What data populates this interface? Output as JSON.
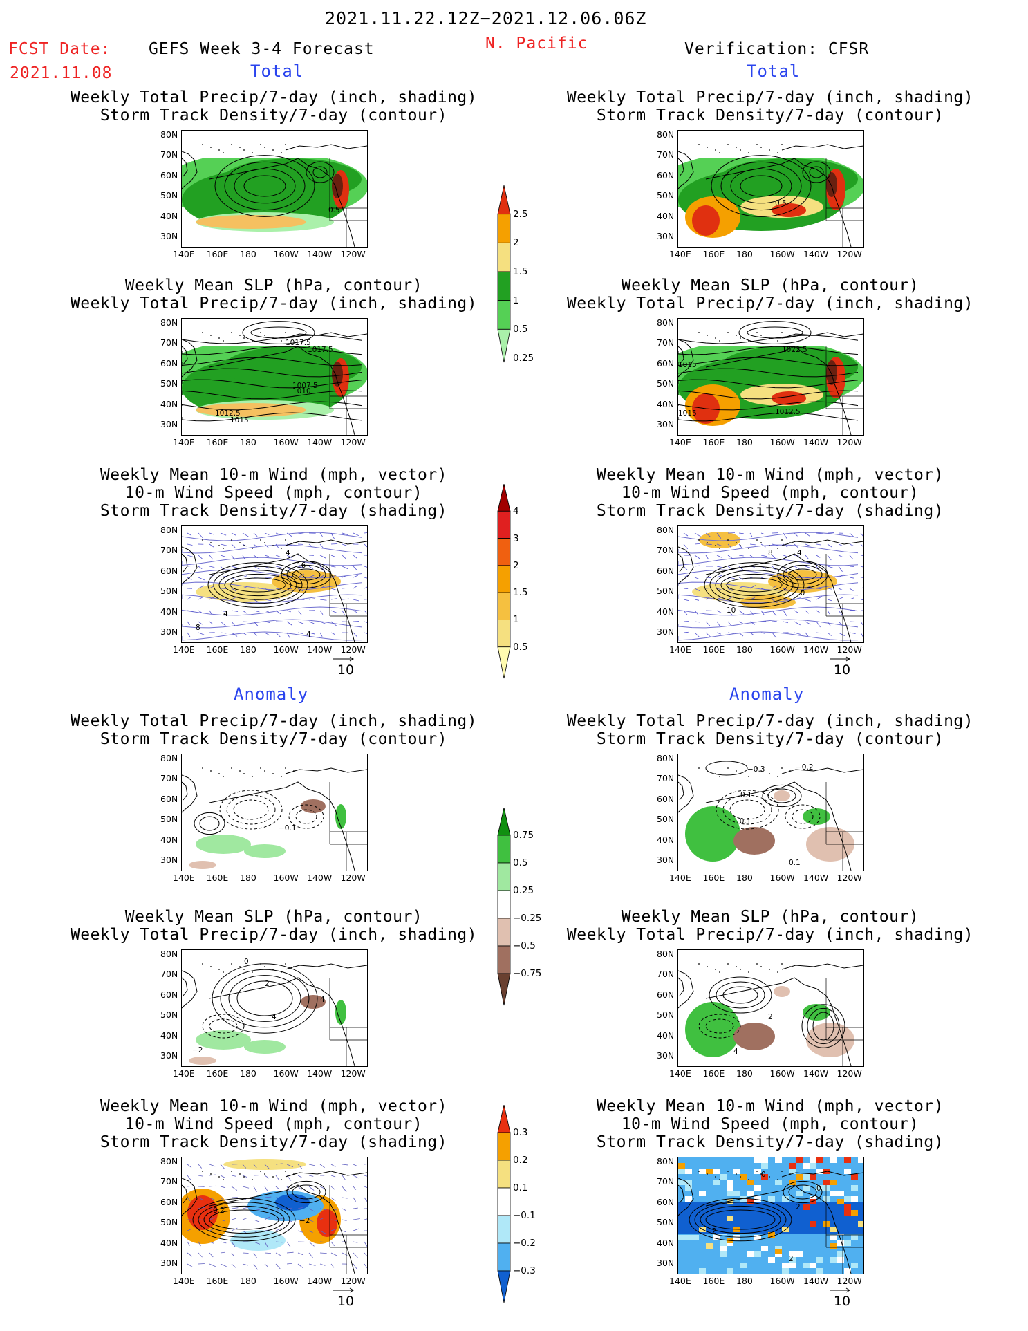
{
  "header": {
    "date_range": "2021.11.22.12Z−2021.12.06.06Z",
    "fcst_label": "FCST Date:",
    "fcst_date": "2021.11.08",
    "forecast_title": "GEFS Week 3-4 Forecast",
    "region": "N. Pacific",
    "verification": "Verification: CFSR"
  },
  "sections": {
    "total": "Total",
    "anomaly": "Anomaly"
  },
  "panel_titles": {
    "precip_storm": [
      "Weekly Total Precip/7-day (inch, shading)",
      "Storm Track Density/7-day (contour)"
    ],
    "slp_precip": [
      "Weekly Mean SLP (hPa, contour)",
      "Weekly Total Precip/7-day (inch, shading)"
    ],
    "wind_storm": [
      "Weekly Mean 10-m Wind (mph, vector)",
      "10-m Wind Speed (mph, contour)",
      "Storm Track Density/7-day (shading)"
    ]
  },
  "axes": {
    "lat_ticks": [
      "80N",
      "70N",
      "60N",
      "50N",
      "40N",
      "30N"
    ],
    "lon_ticks": [
      "140E",
      "160E",
      "180",
      "160W",
      "140W",
      "120W"
    ]
  },
  "vector_ref": "10",
  "colorbars": {
    "precip_total": {
      "labels": [
        "2.5",
        "2",
        "1.5",
        "1",
        "0.5",
        "0.25"
      ],
      "colors": [
        "#e03010",
        "#f5a000",
        "#f5e080",
        "#22a022",
        "#55d055",
        "#aaf0aa"
      ]
    },
    "storm_total": {
      "labels": [
        "4",
        "3",
        "2",
        "1.5",
        "1",
        "0.5"
      ],
      "colors": [
        "#a00000",
        "#e02020",
        "#f06010",
        "#f5a000",
        "#f5c040",
        "#f5e080",
        "#fffbb0"
      ]
    },
    "precip_anom": {
      "labels": [
        "0.75",
        "0.5",
        "0.25",
        "−0.25",
        "−0.5",
        "−0.75"
      ],
      "colors": [
        "#109010",
        "#40c040",
        "#a0e8a0",
        "#ffffff",
        "#e0c0b0",
        "#a07060",
        "#6a4030"
      ]
    },
    "storm_anom": {
      "labels": [
        "0.3",
        "0.2",
        "0.1",
        "−0.1",
        "−0.2",
        "−0.3"
      ],
      "colors": [
        "#e83010",
        "#f5a000",
        "#f5e080",
        "#ffffff",
        "#b0e8f8",
        "#50b0f0",
        "#1060d0"
      ]
    }
  },
  "contour_labels": {
    "total_p1_l": [
      "0.5"
    ],
    "total_p1_r": [
      "0.5"
    ],
    "total_p2_l": [
      "1017.5",
      "1017.5",
      "1007.5",
      "1010",
      "1012.5",
      "1015"
    ],
    "total_p2_r": [
      "1022.5",
      "1015",
      "1015",
      "1012.5"
    ],
    "total_p3_l": [
      "16",
      "4",
      "8",
      "4",
      "4"
    ],
    "total_p3_r": [
      "8",
      "4",
      "10",
      "10"
    ],
    "anom_p1_l": [
      "−0.1"
    ],
    "anom_p1_r": [
      "−0.3",
      "−0.2",
      "0.1",
      "−0.1",
      "0.1"
    ],
    "anom_p2_l": [
      "0",
      "2",
      "4",
      "−2",
      "4"
    ],
    "anom_p2_r": [
      "2",
      "4"
    ],
    "anom_p3_l": [
      "0.2",
      "−2"
    ],
    "anom_p3_r": [
      "0",
      "0",
      "2",
      "−2",
      "2"
    ]
  }
}
